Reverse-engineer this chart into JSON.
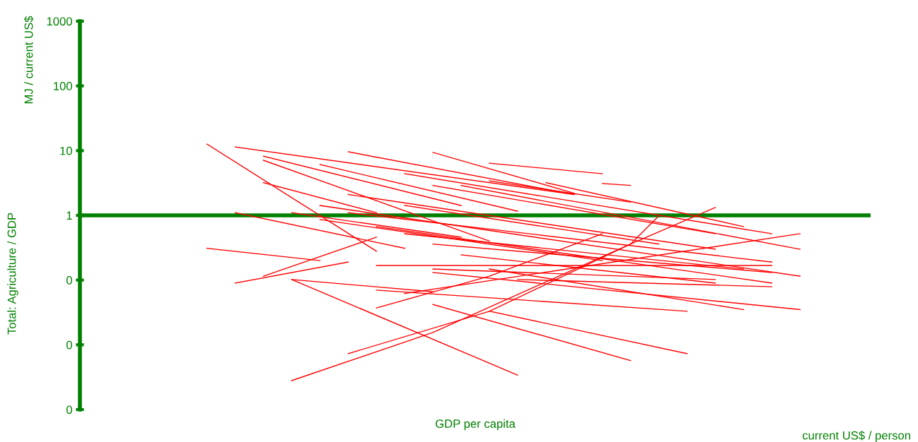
{
  "chart_data": {
    "type": "line",
    "xlabel": "GDP per capita",
    "ylabel": "Total: Agriculture / GDP",
    "annotations": [
      "MJ / current US$",
      "current US$ / person"
    ],
    "categories": [
      null,
      null,
      null,
      null,
      null,
      null,
      null,
      null,
      null,
      null,
      null,
      null,
      null,
      null,
      null,
      null,
      null,
      null,
      null,
      null,
      null,
      null,
      null,
      null,
      null,
      null,
      null,
      null
    ],
    "log": "y",
    "ylim": [
      0.001,
      1000
    ],
    "yticks": [
      {
        "value": 0.001,
        "label": "0"
      },
      {
        "value": 0.01,
        "label": "0"
      },
      {
        "value": 0.1,
        "label": "0"
      },
      1,
      10,
      100,
      1000
    ],
    "tick_labels": "y",
    "grid": false,
    "legend": false,
    "marker": "none",
    "line_style": "solid",
    "series": [
      {
        "color": "#ff0000",
        "values": [
          null,
          null,
          null,
          null,
          12.6,
          null,
          null,
          null,
          null,
          null,
          0.28,
          null,
          null,
          null,
          null,
          null,
          null,
          null,
          null,
          null,
          null,
          null,
          null,
          null,
          null,
          null,
          null,
          null
        ]
      },
      {
        "color": "#ff0000",
        "values": [
          null,
          null,
          null,
          null,
          null,
          11.4,
          null,
          null,
          null,
          null,
          null,
          null,
          null,
          null,
          null,
          null,
          null,
          2.1,
          null,
          null,
          null,
          null,
          null,
          null,
          null,
          null,
          null,
          null
        ]
      },
      {
        "color": "#ff0000",
        "values": [
          null,
          null,
          null,
          null,
          null,
          null,
          7.1,
          null,
          null,
          null,
          null,
          null,
          null,
          null,
          0.4,
          null,
          null,
          null,
          null,
          null,
          null,
          null,
          null,
          null,
          null,
          null,
          null,
          null
        ]
      },
      {
        "color": "#ff0000",
        "values": [
          null,
          null,
          null,
          null,
          null,
          null,
          3.2,
          null,
          null,
          null,
          1.1,
          null,
          null,
          null,
          null,
          null,
          null,
          null,
          null,
          null,
          null,
          null,
          null,
          null,
          null,
          null,
          null,
          null
        ]
      },
      {
        "color": "#ff0000",
        "values": [
          null,
          null,
          null,
          null,
          null,
          null,
          null,
          null,
          6.1,
          null,
          null,
          null,
          null,
          null,
          null,
          1.16,
          null,
          null,
          null,
          null,
          null,
          null,
          null,
          null,
          null,
          null,
          null,
          null
        ]
      },
      {
        "color": "#ff0000",
        "values": [
          null,
          null,
          null,
          null,
          null,
          null,
          null,
          null,
          null,
          9.6,
          null,
          null,
          null,
          null,
          null,
          null,
          null,
          2.1,
          null,
          null,
          null,
          null,
          null,
          null,
          null,
          null,
          null,
          null
        ]
      },
      {
        "color": "#ff0000",
        "values": [
          null,
          null,
          null,
          null,
          null,
          null,
          null,
          null,
          null,
          null,
          null,
          null,
          9.4,
          null,
          null,
          null,
          null,
          2.2,
          null,
          null,
          null,
          null,
          null,
          null,
          null,
          null,
          null,
          null
        ]
      },
      {
        "color": "#ff0000",
        "values": [
          null,
          null,
          null,
          null,
          null,
          null,
          null,
          null,
          null,
          null,
          null,
          null,
          null,
          null,
          3.4,
          null,
          null,
          null,
          null,
          1.6,
          null,
          null,
          null,
          null,
          null,
          null,
          null,
          null
        ]
      },
      {
        "color": "#ff0000",
        "values": [
          null,
          null,
          null,
          null,
          null,
          null,
          null,
          null,
          null,
          null,
          null,
          4.4,
          null,
          null,
          null,
          null,
          null,
          null,
          null,
          null,
          null,
          null,
          null,
          null,
          0.52,
          null,
          null,
          null
        ]
      },
      {
        "color": "#ff0000",
        "values": [
          null,
          null,
          null,
          null,
          null,
          null,
          null,
          null,
          null,
          null,
          null,
          null,
          null,
          2.9,
          null,
          null,
          null,
          null,
          null,
          null,
          null,
          null,
          null,
          null,
          null,
          0.3,
          null,
          null
        ]
      },
      {
        "color": "#ff0000",
        "values": [
          null,
          null,
          null,
          null,
          0.31,
          null,
          null,
          null,
          0.2,
          null,
          null,
          null,
          null,
          null,
          null,
          null,
          null,
          null,
          null,
          null,
          null,
          null,
          null,
          null,
          null,
          null,
          null,
          null
        ]
      },
      {
        "color": "#ff0000",
        "values": [
          null,
          null,
          null,
          null,
          null,
          0.09,
          null,
          null,
          null,
          0.19,
          null,
          null,
          null,
          null,
          null,
          null,
          null,
          null,
          null,
          null,
          null,
          null,
          null,
          null,
          null,
          null,
          null,
          null
        ]
      },
      {
        "color": "#ff0000",
        "values": [
          null,
          null,
          null,
          null,
          null,
          null,
          0.115,
          null,
          null,
          null,
          0.46,
          null,
          null,
          null,
          null,
          null,
          null,
          null,
          null,
          null,
          null,
          null,
          null,
          null,
          null,
          null,
          null,
          null
        ]
      },
      {
        "color": "#ff0000",
        "values": [
          null,
          null,
          null,
          null,
          null,
          1.1,
          null,
          null,
          null,
          null,
          null,
          0.31,
          null,
          null,
          null,
          null,
          null,
          null,
          null,
          null,
          null,
          null,
          null,
          null,
          null,
          null,
          null,
          null
        ]
      },
      {
        "color": "#ff0000",
        "values": [
          null,
          null,
          null,
          null,
          null,
          null,
          null,
          0.102,
          null,
          null,
          null,
          null,
          null,
          null,
          null,
          0.0034,
          null,
          null,
          null,
          null,
          null,
          null,
          null,
          null,
          null,
          null,
          null,
          null
        ]
      },
      {
        "color": "#ff0000",
        "values": [
          null,
          null,
          null,
          null,
          null,
          null,
          null,
          0.102,
          null,
          null,
          null,
          null,
          0.066,
          null,
          null,
          null,
          null,
          null,
          null,
          null,
          null,
          null,
          null,
          null,
          null,
          null,
          null,
          null
        ]
      },
      {
        "color": "#ff0000",
        "values": [
          null,
          null,
          null,
          null,
          null,
          null,
          null,
          null,
          null,
          null,
          0.07,
          null,
          null,
          null,
          null,
          null,
          null,
          null,
          null,
          null,
          null,
          0.033,
          null,
          null,
          null,
          null,
          null,
          null
        ]
      },
      {
        "color": "#ff0000",
        "values": [
          null,
          null,
          null,
          null,
          null,
          null,
          null,
          0.0028,
          null,
          null,
          null,
          null,
          0.0155,
          null,
          null,
          null,
          null,
          null,
          null,
          0.36,
          0.98,
          null,
          null,
          null,
          null,
          null,
          null,
          null
        ]
      },
      {
        "color": "#ff0000",
        "values": [
          null,
          null,
          null,
          null,
          null,
          null,
          null,
          null,
          null,
          0.0073,
          null,
          null,
          null,
          null,
          0.033,
          null,
          null,
          null,
          null,
          0.36,
          null,
          null,
          1.32,
          null,
          null,
          null,
          null,
          null
        ]
      },
      {
        "color": "#ff0000",
        "values": [
          null,
          null,
          null,
          null,
          null,
          null,
          null,
          null,
          null,
          null,
          0.037,
          null,
          null,
          null,
          0.115,
          null,
          null,
          null,
          0.52,
          null,
          null,
          null,
          null,
          null,
          null,
          null,
          null,
          null
        ]
      },
      {
        "color": "#ff0000",
        "values": [
          null,
          null,
          null,
          null,
          null,
          null,
          null,
          null,
          null,
          null,
          null,
          0.062,
          null,
          null,
          null,
          null,
          null,
          null,
          null,
          null,
          null,
          null,
          null,
          null,
          null,
          0.52,
          null,
          null
        ]
      },
      {
        "color": "#ff0000",
        "values": [
          null,
          null,
          null,
          null,
          null,
          null,
          null,
          null,
          null,
          null,
          null,
          null,
          0.042,
          null,
          null,
          null,
          null,
          null,
          null,
          0.0057,
          null,
          null,
          null,
          null,
          null,
          null,
          null,
          null
        ]
      },
      {
        "color": "#ff0000",
        "values": [
          null,
          null,
          null,
          null,
          null,
          null,
          null,
          null,
          null,
          null,
          null,
          null,
          null,
          null,
          0.148,
          null,
          null,
          null,
          null,
          null,
          null,
          null,
          null,
          0.035,
          null,
          null,
          null,
          null
        ]
      },
      {
        "color": "#ff0000",
        "values": [
          null,
          null,
          null,
          null,
          null,
          null,
          null,
          null,
          null,
          null,
          null,
          null,
          0.131,
          null,
          null,
          null,
          null,
          null,
          null,
          null,
          null,
          null,
          null,
          null,
          null,
          0.035,
          null,
          null
        ]
      },
      {
        "color": "#ff0000",
        "values": [
          null,
          null,
          null,
          null,
          null,
          null,
          null,
          null,
          1.42,
          null,
          null,
          null,
          null,
          null,
          null,
          null,
          null,
          null,
          null,
          null,
          null,
          null,
          null,
          null,
          null,
          0.115,
          null,
          null
        ]
      },
      {
        "color": "#ff0000",
        "values": [
          null,
          null,
          null,
          null,
          null,
          null,
          null,
          null,
          null,
          1.1,
          null,
          null,
          null,
          null,
          null,
          null,
          null,
          null,
          null,
          null,
          null,
          null,
          null,
          null,
          0.19,
          null,
          null,
          null
        ]
      },
      {
        "color": "#ff0000",
        "values": [
          null,
          null,
          null,
          null,
          null,
          null,
          null,
          null,
          null,
          null,
          0.67,
          null,
          null,
          null,
          null,
          null,
          null,
          null,
          null,
          null,
          null,
          null,
          null,
          null,
          0.09,
          null,
          null,
          null
        ]
      },
      {
        "color": "#ff0000",
        "values": [
          null,
          null,
          null,
          null,
          null,
          null,
          null,
          null,
          null,
          null,
          null,
          0.52,
          null,
          null,
          null,
          null,
          null,
          null,
          null,
          null,
          null,
          null,
          null,
          0.148,
          null,
          null,
          null,
          null
        ]
      },
      {
        "color": "#ff0000",
        "values": [
          null,
          null,
          null,
          null,
          null,
          null,
          null,
          null,
          null,
          null,
          null,
          null,
          0.36,
          null,
          null,
          null,
          null,
          null,
          null,
          null,
          null,
          null,
          null,
          null,
          0.131,
          null,
          null,
          null
        ]
      },
      {
        "color": "#ff0000",
        "values": [
          null,
          null,
          null,
          null,
          null,
          null,
          null,
          null,
          null,
          null,
          null,
          null,
          null,
          0.245,
          null,
          null,
          null,
          null,
          null,
          null,
          null,
          null,
          0.09,
          null,
          null,
          null,
          null,
          null
        ]
      },
      {
        "color": "#ff0000",
        "values": [
          null,
          null,
          null,
          null,
          null,
          null,
          null,
          null,
          null,
          null,
          null,
          1.42,
          null,
          null,
          null,
          null,
          null,
          null,
          null,
          null,
          0.36,
          null,
          null,
          null,
          null,
          null,
          null,
          null
        ]
      },
      {
        "color": "#ff0000",
        "values": [
          null,
          null,
          null,
          null,
          null,
          null,
          null,
          null,
          null,
          2.1,
          null,
          null,
          null,
          null,
          null,
          null,
          null,
          null,
          null,
          null,
          null,
          null,
          0.3,
          null,
          null,
          null,
          null,
          null
        ]
      },
      {
        "color": "#ff0000",
        "values": [
          null,
          null,
          null,
          null,
          null,
          null,
          null,
          null,
          null,
          null,
          0.168,
          null,
          null,
          null,
          null,
          null,
          null,
          null,
          null,
          null,
          null,
          null,
          null,
          null,
          0.168,
          null,
          null,
          null
        ]
      },
      {
        "color": "#ff0000",
        "values": [
          null,
          null,
          null,
          null,
          null,
          null,
          null,
          null,
          null,
          null,
          null,
          null,
          0.148,
          null,
          null,
          null,
          null,
          null,
          null,
          null,
          null,
          null,
          0.102,
          null,
          null,
          null,
          null,
          null
        ]
      },
      {
        "color": "#ff0000",
        "values": [
          null,
          null,
          null,
          null,
          null,
          null,
          null,
          null,
          null,
          null,
          null,
          null,
          null,
          null,
          null,
          0.102,
          null,
          null,
          null,
          null,
          null,
          null,
          null,
          null,
          0.079,
          null,
          null,
          null
        ]
      },
      {
        "color": "#ff0000",
        "values": [
          null,
          null,
          null,
          null,
          null,
          null,
          null,
          null,
          null,
          null,
          null,
          null,
          null,
          null,
          0.033,
          null,
          null,
          null,
          null,
          null,
          null,
          0.0073,
          null,
          null,
          null,
          null,
          null,
          null
        ]
      },
      {
        "color": "#ff0000",
        "values": [
          null,
          null,
          null,
          null,
          null,
          null,
          null,
          1.1,
          null,
          null,
          null,
          null,
          null,
          0.46,
          null,
          null,
          null,
          null,
          null,
          null,
          null,
          null,
          null,
          null,
          null,
          null,
          null,
          null
        ]
      },
      {
        "color": "#ff0000",
        "values": [
          null,
          null,
          null,
          null,
          null,
          null,
          null,
          null,
          0.86,
          null,
          null,
          null,
          null,
          null,
          null,
          null,
          null,
          null,
          0.2,
          null,
          null,
          null,
          null,
          null,
          null,
          null,
          null,
          null
        ]
      },
      {
        "color": "#ff0000",
        "values": [
          null,
          null,
          null,
          null,
          null,
          null,
          null,
          null,
          null,
          null,
          null,
          null,
          null,
          null,
          6.4,
          null,
          null,
          null,
          4.4,
          null,
          null,
          null,
          null,
          null,
          null,
          null,
          null,
          null
        ]
      },
      {
        "color": "#ff0000",
        "values": [
          null,
          null,
          null,
          null,
          null,
          null,
          null,
          null,
          null,
          null,
          null,
          null,
          null,
          null,
          null,
          null,
          null,
          null,
          3.1,
          2.9,
          null,
          null,
          null,
          null,
          null,
          null,
          null,
          null
        ]
      },
      {
        "color": "#ff0000",
        "values": [
          null,
          null,
          null,
          null,
          null,
          null,
          null,
          null,
          null,
          null,
          null,
          null,
          null,
          null,
          null,
          null,
          3.2,
          null,
          null,
          null,
          null,
          null,
          null,
          0.67,
          null,
          null,
          null,
          null
        ]
      },
      {
        "color": "#ff0000",
        "values": [
          null,
          null,
          null,
          null,
          null,
          null,
          null,
          null,
          null,
          null,
          null,
          null,
          2.9,
          null,
          null,
          null,
          null,
          null,
          null,
          null,
          null,
          null,
          0.52,
          null,
          null,
          null,
          null,
          null
        ]
      },
      {
        "color": "#ff0000",
        "values": [
          null,
          null,
          null,
          null,
          null,
          null,
          8.2,
          null,
          null,
          null,
          null,
          null,
          null,
          1.42,
          null,
          null,
          null,
          null,
          null,
          null,
          null,
          null,
          null,
          null,
          null,
          null,
          null,
          null
        ]
      }
    ],
    "ref_lines": [
      {
        "axis": "y",
        "value": 1,
        "color": "#008000"
      }
    ]
  }
}
